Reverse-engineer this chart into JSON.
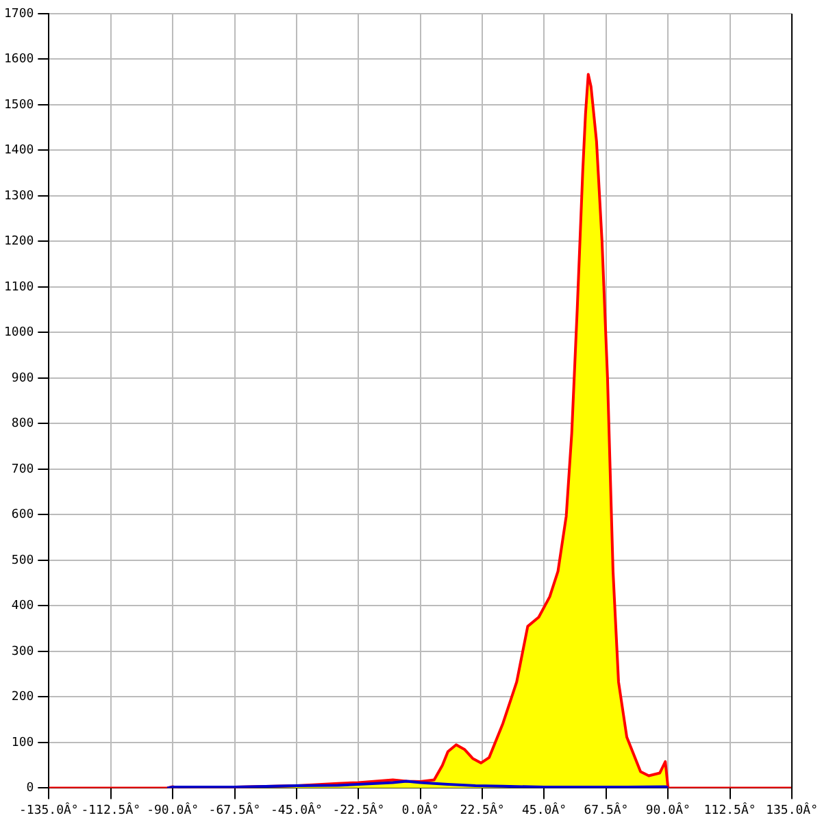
{
  "chart_data": {
    "type": "area",
    "grid": true,
    "line_style": "solid",
    "xlim": [
      -135,
      135
    ],
    "ylim": [
      0,
      1700
    ],
    "xticks": [
      {
        "value": -135,
        "label": "-135.0Â°"
      },
      {
        "value": -112.5,
        "label": "-112.5Â°"
      },
      {
        "value": -90,
        "label": "-90.0Â°"
      },
      {
        "value": -67.5,
        "label": "-67.5Â°"
      },
      {
        "value": -45,
        "label": "-45.0Â°"
      },
      {
        "value": -22.5,
        "label": "-22.5Â°"
      },
      {
        "value": 0,
        "label": "0.0Â°"
      },
      {
        "value": 22.5,
        "label": "22.5Â°"
      },
      {
        "value": 45,
        "label": "45.0Â°"
      },
      {
        "value": 67.5,
        "label": "67.5Â°"
      },
      {
        "value": 90,
        "label": "90.0Â°"
      },
      {
        "value": 112.5,
        "label": "112.5Â°"
      },
      {
        "value": 135,
        "label": "135.0Â°"
      }
    ],
    "yticks": [
      0,
      100,
      200,
      300,
      400,
      500,
      600,
      700,
      800,
      900,
      1000,
      1100,
      1200,
      1300,
      1400,
      1500,
      1600,
      1700
    ],
    "series": [
      {
        "color": "#ffff00",
        "x": [
          -135,
          -92,
          -90,
          -88,
          -67.5,
          -45,
          -30,
          -22.5,
          -10,
          -5,
          0,
          5,
          8,
          10,
          13,
          16,
          19,
          22,
          25,
          30,
          35,
          39,
          43,
          47,
          50,
          53,
          55,
          57,
          59,
          60,
          61,
          62,
          64,
          66,
          68,
          70,
          72,
          75,
          80,
          83,
          87,
          89,
          90,
          90.5,
          135
        ],
        "values": [
          0,
          0,
          3,
          0,
          2,
          5,
          10,
          12,
          18,
          15,
          14,
          18,
          50,
          80,
          95,
          85,
          65,
          55,
          67,
          142,
          233,
          355,
          375,
          420,
          476,
          597,
          779,
          1052,
          1355,
          1480,
          1567,
          1540,
          1420,
          1200,
          900,
          476,
          233,
          112,
          36,
          27,
          33,
          58,
          0,
          0,
          0
        ]
      },
      {
        "type": "line",
        "color": "#0000cc",
        "x": [
          -92,
          -90,
          -67.5,
          -45,
          -30,
          -22.5,
          -10,
          -5,
          0,
          5,
          10,
          20,
          30,
          45,
          60,
          75,
          89,
          90
        ],
        "values": [
          0,
          2,
          2,
          5,
          6,
          8,
          12,
          15,
          12,
          10,
          8,
          5,
          4,
          2,
          2,
          2,
          3,
          0
        ]
      }
    ]
  }
}
